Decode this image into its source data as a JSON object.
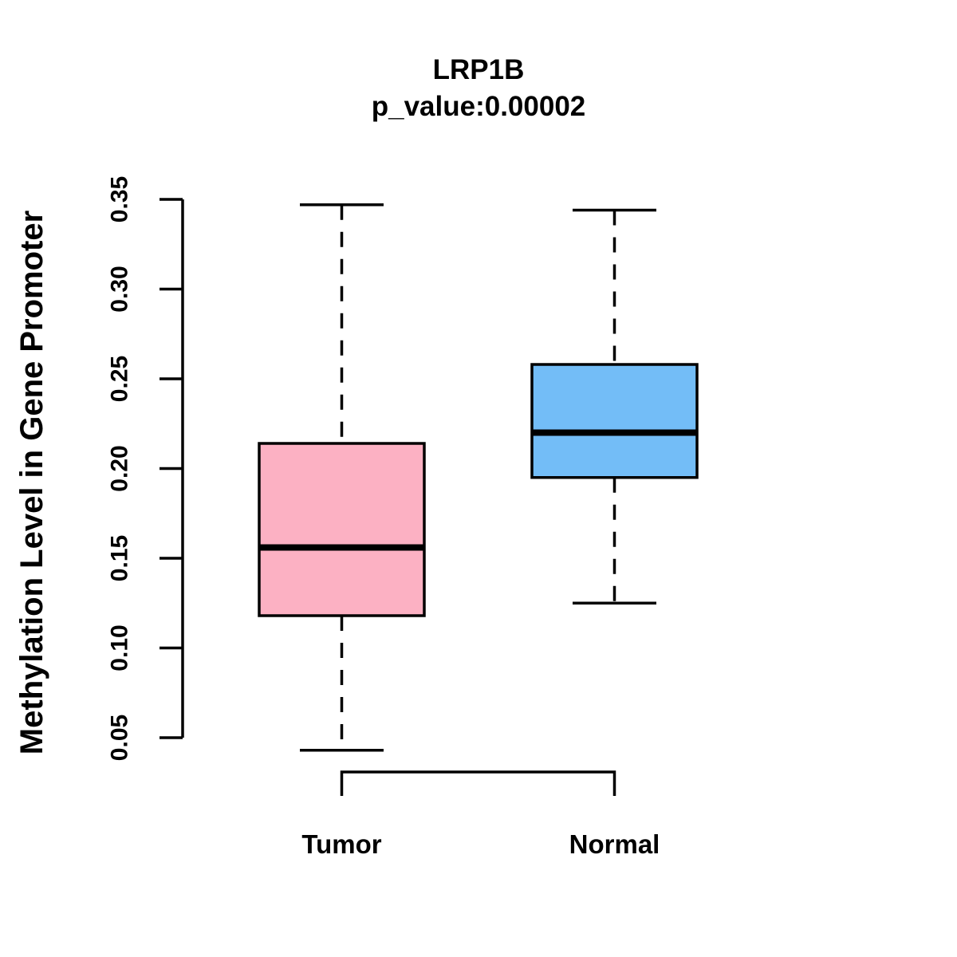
{
  "figure": {
    "title": "LRP1B",
    "subtitle": "p_value:0.00002",
    "ylabel": "Methylation Level in Gene Promoter"
  },
  "chart_data": {
    "type": "boxplot",
    "title": "LRP1B",
    "subtitle": "p_value:0.00002",
    "xlabel": "",
    "ylabel": "Methylation Level in Gene Promoter",
    "categories": [
      "Tumor",
      "Normal"
    ],
    "ylim": [
      0.05,
      0.35
    ],
    "yticks": [
      0.05,
      0.1,
      0.15,
      0.2,
      0.25,
      0.3,
      0.35
    ],
    "ytick_labels": [
      "0.05",
      "0.10",
      "0.15",
      "0.20",
      "0.25",
      "0.30",
      "0.35"
    ],
    "grid": false,
    "legend": "none",
    "series": [
      {
        "name": "Tumor",
        "whisker_low": 0.043,
        "q1": 0.118,
        "median": 0.156,
        "q3": 0.214,
        "whisker_high": 0.347,
        "fill_color": "#FCB1C3"
      },
      {
        "name": "Normal",
        "whisker_low": 0.125,
        "q1": 0.195,
        "median": 0.22,
        "q3": 0.258,
        "whisker_high": 0.344,
        "fill_color": "#73BDF7"
      }
    ],
    "colors": {
      "stroke": "#000000",
      "text": "#000000",
      "background": "#ffffff"
    }
  }
}
